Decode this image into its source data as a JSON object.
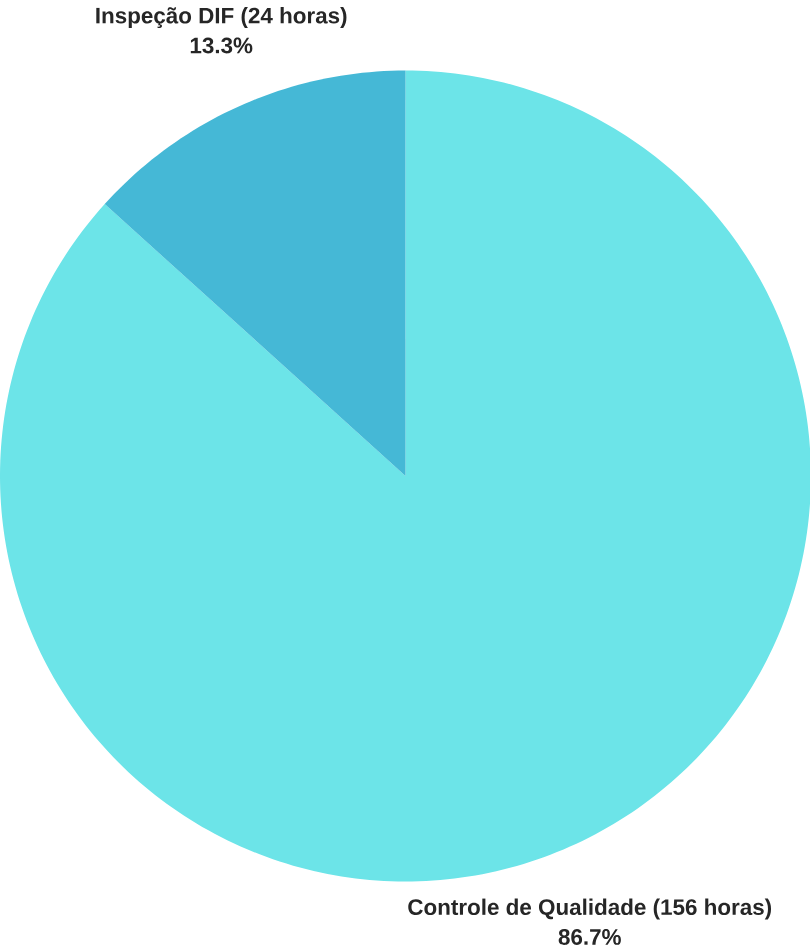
{
  "chart_data": {
    "type": "pie",
    "categories": [
      "Controle de Qualidade (156 horas)",
      "Inspeção DIF (24 horas)"
    ],
    "values": [
      86.7,
      13.3
    ],
    "colors": [
      "#6ce4e8",
      "#45b8d6"
    ],
    "value_labels": [
      "86.7%",
      "13.3%"
    ]
  }
}
